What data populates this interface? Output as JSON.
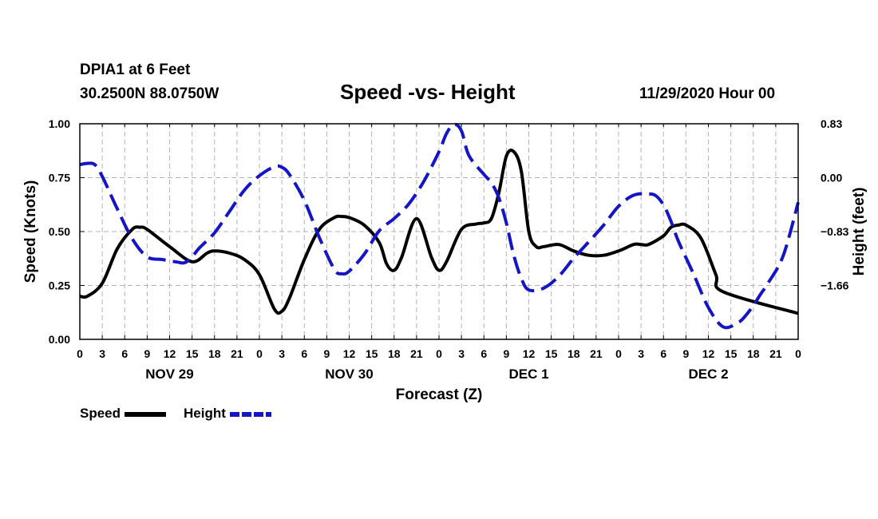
{
  "header": {
    "station": "DPIA1 at 6 Feet",
    "coords": "30.2500N 88.0750W",
    "title": "Speed -vs- Height",
    "date": "11/29/2020 Hour 00"
  },
  "legend": {
    "speed_label": "Speed",
    "height_label": "Height"
  },
  "colors": {
    "speed": "#000000",
    "height": "#1515c8",
    "grid": "#b4b4b4"
  },
  "chart_data": {
    "type": "line",
    "title": "Speed -vs- Height",
    "xlabel": "Forecast (Z)",
    "ylabel": "Speed (Knots)",
    "y2label": "Height (feet)",
    "xlim": [
      0,
      96
    ],
    "ylim": [
      0,
      1
    ],
    "y2lim": [
      -2.49,
      0.83
    ],
    "x_ticks": [
      0,
      3,
      6,
      9,
      12,
      15,
      18,
      21,
      24,
      27,
      30,
      33,
      36,
      39,
      42,
      45,
      48,
      51,
      54,
      57,
      60,
      63,
      66,
      69,
      72,
      75,
      78,
      81,
      84,
      87,
      90,
      93,
      96
    ],
    "x_tick_labels": [
      "0",
      "3",
      "6",
      "9",
      "12",
      "15",
      "18",
      "21",
      "0",
      "3",
      "6",
      "9",
      "12",
      "15",
      "18",
      "21",
      "0",
      "3",
      "6",
      "9",
      "12",
      "15",
      "18",
      "21",
      "0",
      "3",
      "6",
      "9",
      "12",
      "15",
      "18",
      "21",
      "0"
    ],
    "day_labels": [
      {
        "x": 12,
        "label": "NOV 29"
      },
      {
        "x": 36,
        "label": "NOV 30"
      },
      {
        "x": 60,
        "label": "DEC 1"
      },
      {
        "x": 84,
        "label": "DEC 2"
      }
    ],
    "y_ticks": [
      0,
      0.25,
      0.5,
      0.75,
      1.0
    ],
    "y_tick_labels": [
      "0.00",
      "0.25",
      "0.50",
      "0.75",
      "1.00"
    ],
    "y2_ticks": [
      0.83,
      0.0,
      -0.83,
      -1.66
    ],
    "y2_tick_labels": [
      "0.83",
      "0.00",
      "−0.83",
      "−1.66"
    ],
    "grid": true,
    "series": [
      {
        "name": "Speed",
        "axis": "left",
        "style": "solid",
        "x": [
          0,
          1,
          3,
          5,
          7,
          8,
          9,
          12,
          15,
          17,
          18,
          20,
          22,
          24,
          26,
          27,
          28,
          30,
          32,
          34,
          35,
          36,
          38,
          40,
          41,
          42,
          43,
          45,
          47,
          48,
          49,
          51,
          53,
          54,
          55,
          56,
          57,
          58,
          59,
          60,
          61,
          62,
          64,
          66,
          68,
          70,
          72,
          74,
          75,
          76,
          78,
          79,
          80,
          81,
          83,
          85,
          86,
          96
        ],
        "values": [
          0.2,
          0.2,
          0.26,
          0.42,
          0.51,
          0.52,
          0.51,
          0.43,
          0.36,
          0.4,
          0.41,
          0.4,
          0.37,
          0.3,
          0.14,
          0.13,
          0.19,
          0.37,
          0.51,
          0.565,
          0.57,
          0.565,
          0.53,
          0.45,
          0.35,
          0.32,
          0.38,
          0.56,
          0.38,
          0.32,
          0.36,
          0.51,
          0.535,
          0.54,
          0.56,
          0.68,
          0.85,
          0.87,
          0.78,
          0.5,
          0.43,
          0.43,
          0.44,
          0.41,
          0.39,
          0.39,
          0.41,
          0.44,
          0.44,
          0.44,
          0.48,
          0.52,
          0.53,
          0.53,
          0.47,
          0.3,
          0.22,
          0.12
        ]
      },
      {
        "name": "Height",
        "axis": "right",
        "style": "dashed",
        "x": [
          0,
          1,
          2,
          3,
          5,
          7,
          9,
          11,
          13,
          14,
          15,
          16,
          18,
          20,
          22,
          24,
          26,
          27,
          28,
          30,
          32,
          34,
          35,
          36,
          38,
          40,
          42,
          44,
          46,
          48,
          49,
          50,
          51,
          52,
          54,
          55,
          56,
          57,
          58,
          59,
          60,
          62,
          64,
          66,
          68,
          70,
          72,
          74,
          76,
          77,
          78,
          79,
          80,
          82,
          84,
          86,
          88,
          89,
          90,
          91,
          92,
          94,
          96
        ],
        "values": [
          0.2,
          0.22,
          0.2,
          0.02,
          -0.48,
          -0.94,
          -1.22,
          -1.26,
          -1.3,
          -1.31,
          -1.22,
          -1.08,
          -0.85,
          -0.52,
          -0.19,
          0.03,
          0.17,
          0.16,
          0.05,
          -0.35,
          -0.92,
          -1.41,
          -1.48,
          -1.44,
          -1.18,
          -0.82,
          -0.63,
          -0.4,
          -0.05,
          0.4,
          0.68,
          0.82,
          0.72,
          0.34,
          0.05,
          -0.08,
          -0.31,
          -0.7,
          -1.2,
          -1.55,
          -1.73,
          -1.7,
          -1.52,
          -1.24,
          -0.99,
          -0.73,
          -0.44,
          -0.27,
          -0.25,
          -0.28,
          -0.42,
          -0.67,
          -0.98,
          -1.48,
          -2.0,
          -2.3,
          -2.23,
          -2.12,
          -1.97,
          -1.79,
          -1.62,
          -1.2,
          -0.38
        ]
      }
    ]
  }
}
